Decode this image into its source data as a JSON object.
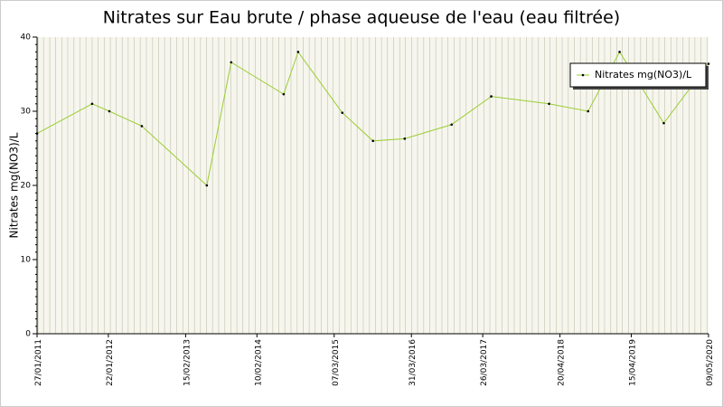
{
  "chart_data": {
    "type": "line",
    "title": "Nitrates sur Eau brute / phase aqueuse de l'eau (eau filtrée)",
    "y_label": "Nitrates mg(NO3)/L",
    "x": [
      "2011-01-27",
      "2011-11-01",
      "2012-01-27",
      "2012-07-09",
      "2013-06-02",
      "2013-10-03",
      "2014-06-25",
      "2014-09-06",
      "2015-04-17",
      "2015-09-19",
      "2016-02-26",
      "2016-10-20",
      "2017-05-08",
      "2018-02-24",
      "2018-09-09",
      "2019-02-15",
      "2019-09-26",
      "2020-05-09"
    ],
    "series": [
      {
        "name": "Nitrates mg(NO3)/L",
        "color": "#9acd32",
        "values": [
          27,
          31,
          30,
          28,
          20,
          36.6,
          32.3,
          38,
          29.8,
          26,
          26.3,
          28.2,
          32,
          31,
          30,
          38,
          28.4,
          36.4
        ]
      }
    ],
    "xlim": [
      "2011-01-27",
      "2020-05-09"
    ],
    "xticks": [
      {
        "value": "2011-01-27",
        "label": "27/01/2011"
      },
      {
        "value": "2012-01-22",
        "label": "22/01/2012"
      },
      {
        "value": "2013-02-15",
        "label": "15/02/2013"
      },
      {
        "value": "2014-02-10",
        "label": "10/02/2014"
      },
      {
        "value": "2015-03-07",
        "label": "07/03/2015"
      },
      {
        "value": "2016-03-31",
        "label": "31/03/2016"
      },
      {
        "value": "2017-03-26",
        "label": "26/03/2017"
      },
      {
        "value": "2018-04-20",
        "label": "20/04/2018"
      },
      {
        "value": "2019-04-15",
        "label": "15/04/2019"
      },
      {
        "value": "2020-05-09",
        "label": "09/05/2020"
      }
    ],
    "ylim": [
      0,
      40
    ],
    "yticks": [
      0,
      10,
      20,
      30,
      40
    ],
    "grid": true
  }
}
